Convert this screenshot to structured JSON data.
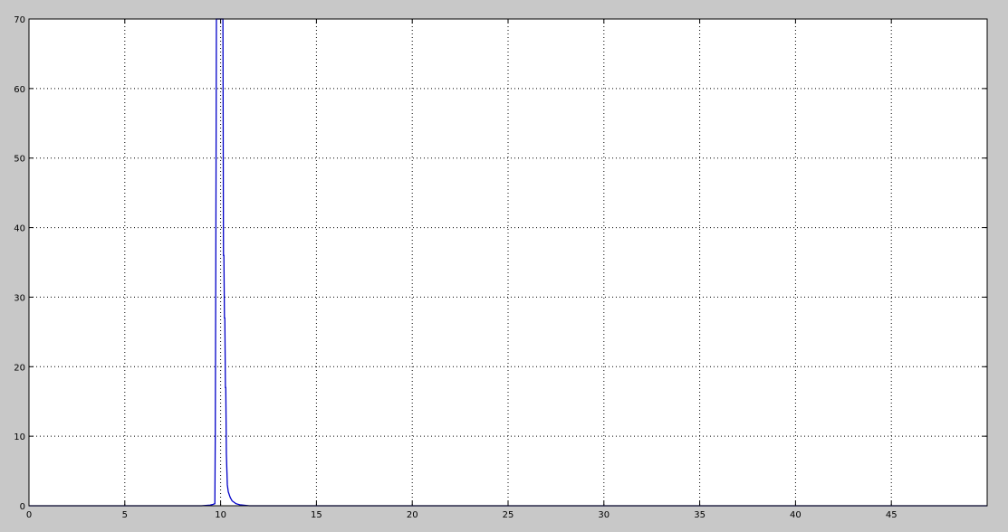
{
  "chart_data": {
    "type": "line",
    "title": "",
    "xlabel": "",
    "ylabel": "",
    "xlim": [
      0,
      50
    ],
    "ylim": [
      0,
      70
    ],
    "x_ticks": [
      0,
      5,
      10,
      15,
      20,
      25,
      30,
      35,
      40,
      45
    ],
    "y_ticks": [
      0,
      10,
      20,
      30,
      40,
      50,
      60,
      70
    ],
    "x_tick_labels": [
      "0",
      "5",
      "10",
      "15",
      "20",
      "25",
      "30",
      "35",
      "40",
      "45"
    ],
    "y_tick_labels": [
      "0",
      "10",
      "20",
      "30",
      "40",
      "50",
      "60",
      "70"
    ],
    "grid": true,
    "background": "#c8c8c8",
    "axes_background": "#ffffff",
    "line_color": "#0000c8",
    "series": [
      {
        "x": [
          0,
          9.0,
          9.45,
          9.6,
          9.7,
          9.72,
          9.75,
          9.78,
          9.9,
          9.95,
          10.0,
          10.05,
          10.1,
          10.12,
          10.15,
          10.17,
          10.2,
          10.22,
          10.25,
          10.27,
          10.3,
          10.35,
          10.4,
          10.5,
          10.6,
          10.8,
          11.0,
          11.5,
          50
        ],
        "y": [
          0,
          0,
          0.1,
          0.2,
          0.3,
          10,
          35,
          70,
          70,
          70,
          70,
          70,
          70,
          70,
          36,
          36,
          27,
          27,
          17,
          17,
          7.5,
          3,
          2,
          1.2,
          0.7,
          0.3,
          0.15,
          0,
          0
        ]
      }
    ]
  }
}
